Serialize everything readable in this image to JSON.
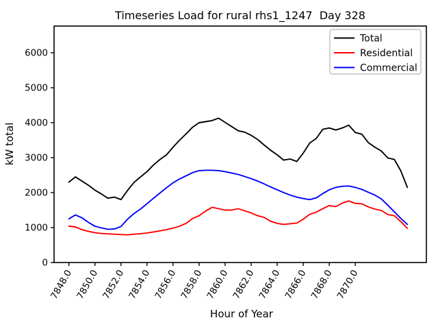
{
  "chart_data": {
    "type": "line",
    "title": "Timeseries Load for rural rhs1_1247  Day 328",
    "xlabel": "Hour of Year",
    "ylabel": "kW total",
    "xlim": [
      7846.86,
      7875.46
    ],
    "ylim": [
      0,
      6765
    ],
    "grid": false,
    "background": "#ffffff",
    "xtick_rotation": 60,
    "xtick_values": [
      7848,
      7850,
      7852,
      7854,
      7856,
      7858,
      7860,
      7862,
      7864,
      7866,
      7868,
      7870
    ],
    "xtick_labels": [
      "7848.0",
      "7850.0",
      "7852.0",
      "7854.0",
      "7856.0",
      "7858.0",
      "7860.0",
      "7862.0",
      "7864.0",
      "7866.0",
      "7868.0",
      "7870.0"
    ],
    "ytick_values": [
      0,
      1000,
      2000,
      3000,
      4000,
      5000,
      6000
    ],
    "ytick_labels": [
      "0",
      "1000",
      "2000",
      "3000",
      "4000",
      "5000",
      "6000"
    ],
    "legend": {
      "position": "upper right",
      "frame_color": "#b3b3b3"
    },
    "x": [
      7848.0,
      7848.5,
      7849.0,
      7849.5,
      7850.0,
      7850.5,
      7851.0,
      7851.5,
      7852.0,
      7852.5,
      7853.0,
      7853.5,
      7854.0,
      7854.5,
      7855.0,
      7855.5,
      7856.0,
      7856.5,
      7857.0,
      7857.5,
      7858.0,
      7858.5,
      7859.0,
      7859.5,
      7860.0,
      7860.5,
      7861.0,
      7861.5,
      7862.0,
      7862.5,
      7863.0,
      7863.5,
      7864.0,
      7864.5,
      7865.0,
      7865.5,
      7866.0,
      7866.5,
      7867.0,
      7867.5,
      7868.0,
      7868.5,
      7869.0,
      7869.5,
      7870.0,
      7870.5,
      7871.0,
      7871.5,
      7872.0,
      7872.5,
      7873.0,
      7873.5,
      7874.0
    ],
    "series": [
      {
        "name": "Total",
        "color": "#000000",
        "values": [
          2300,
          2450,
          2330,
          2210,
          2070,
          1960,
          1840,
          1870,
          1800,
          2060,
          2290,
          2450,
          2600,
          2790,
          2950,
          3080,
          3300,
          3500,
          3680,
          3870,
          4000,
          4030,
          4060,
          4130,
          4010,
          3890,
          3770,
          3730,
          3640,
          3520,
          3360,
          3210,
          3080,
          2930,
          2960,
          2890,
          3130,
          3420,
          3550,
          3810,
          3850,
          3790,
          3850,
          3930,
          3720,
          3670,
          3430,
          3300,
          3190,
          2990,
          2950,
          2620,
          2150
        ]
      },
      {
        "name": "Residential",
        "color": "#ff0000",
        "values": [
          1040,
          1020,
          940,
          890,
          855,
          830,
          820,
          810,
          800,
          790,
          810,
          825,
          845,
          875,
          905,
          940,
          985,
          1040,
          1120,
          1260,
          1340,
          1470,
          1580,
          1540,
          1500,
          1500,
          1540,
          1480,
          1420,
          1340,
          1290,
          1180,
          1120,
          1090,
          1110,
          1130,
          1240,
          1380,
          1440,
          1540,
          1630,
          1600,
          1700,
          1760,
          1690,
          1680,
          1590,
          1530,
          1490,
          1370,
          1340,
          1170,
          980
        ]
      },
      {
        "name": "Commercial",
        "color": "#0000ff",
        "values": [
          1250,
          1360,
          1280,
          1150,
          1040,
          990,
          950,
          960,
          1030,
          1240,
          1400,
          1530,
          1680,
          1840,
          1990,
          2140,
          2280,
          2390,
          2480,
          2570,
          2630,
          2640,
          2640,
          2630,
          2600,
          2560,
          2520,
          2460,
          2400,
          2330,
          2250,
          2160,
          2080,
          2000,
          1930,
          1870,
          1830,
          1800,
          1850,
          1970,
          2080,
          2150,
          2180,
          2190,
          2150,
          2090,
          2010,
          1930,
          1820,
          1640,
          1450,
          1260,
          1090
        ]
      }
    ]
  }
}
